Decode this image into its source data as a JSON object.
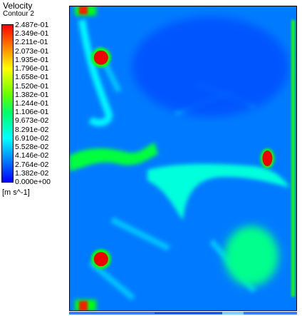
{
  "legend": {
    "title": "Velocity",
    "subtitle": "Contour 2",
    "units": "[m s^-1]",
    "ticks": [
      "2.487e-01",
      "2.349e-01",
      "2.211e-01",
      "2.073e-01",
      "1.935e-01",
      "1.796e-01",
      "1.658e-01",
      "1.520e-01",
      "1.382e-01",
      "1.244e-01",
      "1.106e-01",
      "9.673e-02",
      "8.291e-02",
      "6.910e-02",
      "5.528e-02",
      "4.146e-02",
      "2.764e-02",
      "1.382e-02",
      "0.000e+00"
    ],
    "colors": [
      "#ff0000",
      "#ff3300",
      "#ff6600",
      "#ff9900",
      "#ffcc00",
      "#ffff00",
      "#ccff00",
      "#99ff00",
      "#66ff00",
      "#33ff33",
      "#00ff66",
      "#00ff99",
      "#00ffcc",
      "#00ffff",
      "#00ccff",
      "#0099ff",
      "#0066ff",
      "#0033ff",
      "#0000ff"
    ]
  },
  "chart_data": {
    "type": "heatmap",
    "title": "Velocity",
    "subtitle": "Contour 2",
    "units": "[m s^-1]",
    "scale_range": [
      0.0,
      0.2487
    ],
    "background_value": 0.03,
    "features": [
      {
        "name": "top-left corner jet",
        "value": 0.24,
        "u": 0.07,
        "v": 0.02
      },
      {
        "name": "left column streak",
        "value": 0.06,
        "u": 0.1,
        "v": 0.2
      },
      {
        "name": "upper-left obstacle",
        "value": 0.2487,
        "u": 0.14,
        "v": 0.17
      },
      {
        "name": "lower-left obstacle",
        "value": 0.2487,
        "u": 0.14,
        "v": 0.83
      },
      {
        "name": "right obstacle",
        "value": 0.2487,
        "u": 0.87,
        "v": 0.5
      },
      {
        "name": "left middle band",
        "value": 0.11,
        "u": 0.14,
        "v": 0.5
      },
      {
        "name": "central curved band",
        "value": 0.07,
        "u": 0.55,
        "v": 0.57
      },
      {
        "name": "lower-right patch",
        "value": 0.09,
        "u": 0.8,
        "v": 0.82
      },
      {
        "name": "upper-right low region",
        "value": 0.02,
        "u": 0.7,
        "v": 0.22
      },
      {
        "name": "right wall strip",
        "value": 0.13,
        "u": 0.98,
        "v": 0.5
      },
      {
        "name": "bottom-left corner jet",
        "value": 0.24,
        "u": 0.07,
        "v": 0.99
      }
    ]
  }
}
